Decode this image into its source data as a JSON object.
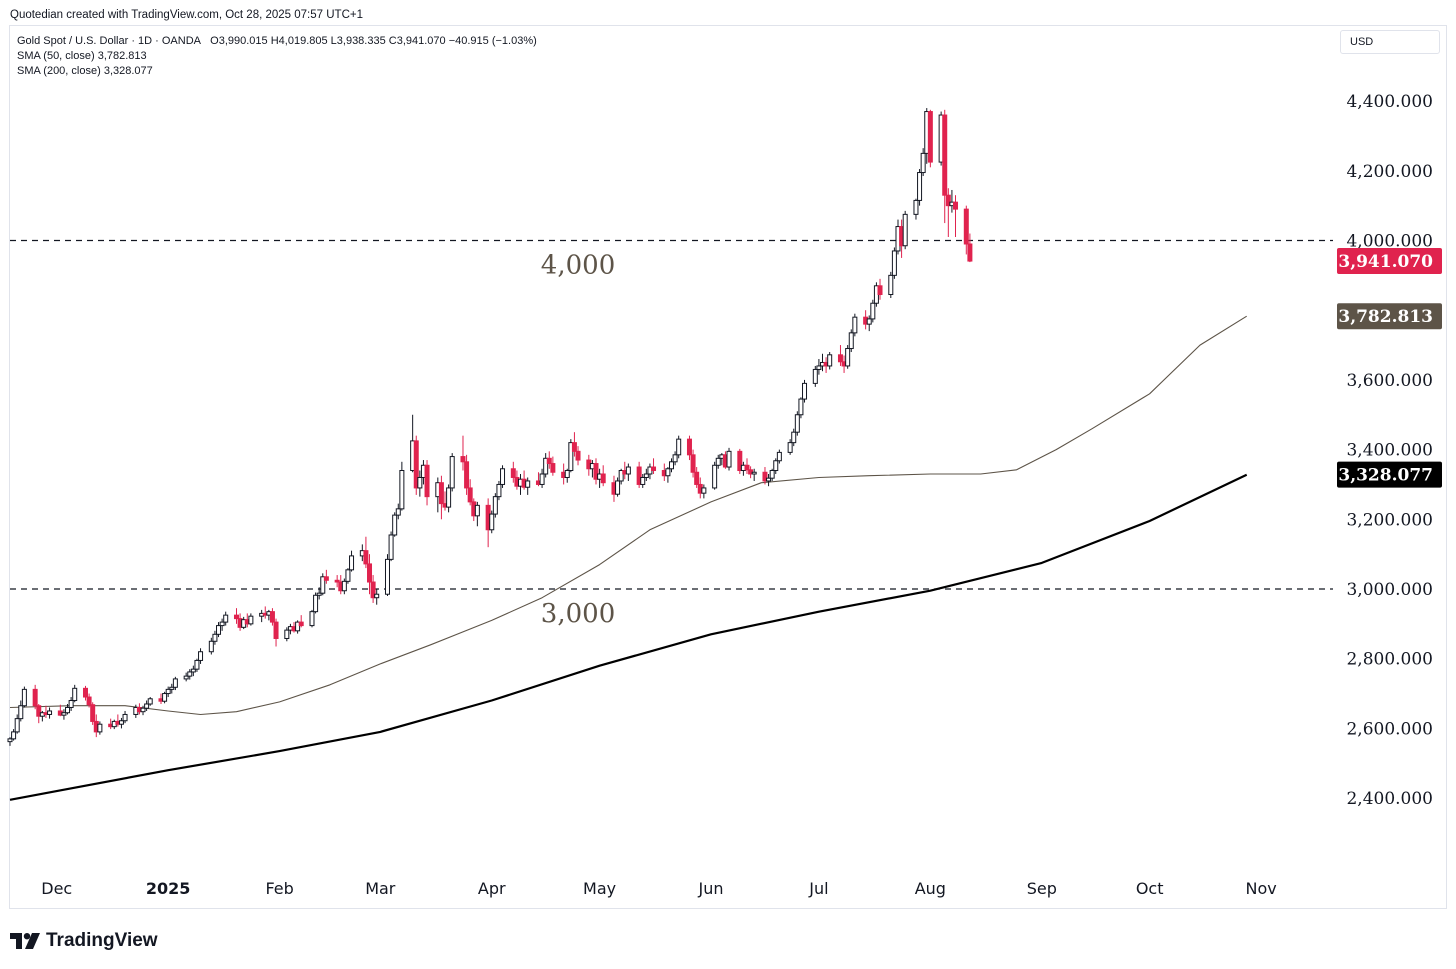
{
  "header": {
    "created_note": "Quotedian created with TradingView.com, Oct 28, 2025 07:57 UTC+1"
  },
  "legend": {
    "instrument": "Gold Spot / U.S. Dollar · 1D · OANDA",
    "ohlc": "O3,990.015  H4,019.805  L3,938.335  C3,941.070  −40.915 (−1.03%)",
    "sma50_label": "SMA (50, close)",
    "sma50_value": "3,782.813",
    "sma200_label": "SMA (200, close)",
    "sma200_value": "3,328.077"
  },
  "currency_label": "USD",
  "brand": {
    "name": "TradingView",
    "logo_icon": "tradingview-logo-icon"
  },
  "colors": {
    "up": "#131722",
    "down": "#e0234e",
    "sma50": "#5d5448",
    "sma200": "#000000",
    "price_tag": "#e0234e",
    "sma50_tag": "#5d5448",
    "sma200_tag": "#000000",
    "level_text": "#5d5448"
  },
  "chart_data": {
    "type": "candlestick",
    "instrument": "Gold Spot / U.S. Dollar",
    "timeframe": "1D",
    "ylim": [
      2250,
      4500
    ],
    "y_ticks": [
      {
        "value": 4400,
        "label": "4,400.000"
      },
      {
        "value": 4200,
        "label": "4,200.000"
      },
      {
        "value": 4000,
        "label": "4,000.000"
      },
      {
        "value": 3600,
        "label": "3,600.000"
      },
      {
        "value": 3400,
        "label": "3,400.000"
      },
      {
        "value": 3200,
        "label": "3,200.000"
      },
      {
        "value": 3000,
        "label": "3,000.000"
      },
      {
        "value": 2800,
        "label": "2,800.000"
      },
      {
        "value": 2600,
        "label": "2,600.000"
      },
      {
        "value": 2400,
        "label": "2,400.000"
      }
    ],
    "x_ticks": [
      {
        "date": "2024-12-01",
        "label": "Dec"
      },
      {
        "date": "2025-01-01",
        "label": "2025"
      },
      {
        "date": "2025-02-01",
        "label": "Feb"
      },
      {
        "date": "2025-03-01",
        "label": "Mar"
      },
      {
        "date": "2025-04-01",
        "label": "Apr"
      },
      {
        "date": "2025-05-01",
        "label": "May"
      },
      {
        "date": "2025-06-01",
        "label": "Jun"
      },
      {
        "date": "2025-07-01",
        "label": "Jul"
      },
      {
        "date": "2025-08-01",
        "label": "Aug"
      },
      {
        "date": "2025-09-01",
        "label": "Sep"
      },
      {
        "date": "2025-10-01",
        "label": "Oct"
      },
      {
        "date": "2025-11-01",
        "label": "Nov"
      }
    ],
    "x_range": [
      "2024-11-18",
      "2025-11-21"
    ],
    "levels": [
      {
        "value": 4000,
        "label": "4,000",
        "label_date": "2025-04-25",
        "label_offset": "below"
      },
      {
        "value": 3000,
        "label": "3,000",
        "label_date": "2025-04-25",
        "label_offset": "below"
      }
    ],
    "price_tags": [
      {
        "value": 3941.07,
        "label": "3,941.070",
        "role": "last_price"
      },
      {
        "value": 3782.813,
        "label": "3,782.813",
        "role": "sma50"
      },
      {
        "value": 3328.077,
        "label": "3,328.077",
        "role": "sma200"
      }
    ],
    "candles_anchor_date": "2024-11-18",
    "candles": [
      [
        2562,
        2575,
        2550,
        2570
      ],
      [
        2570,
        2598,
        2565,
        2590
      ],
      [
        2590,
        2640,
        2585,
        2628
      ],
      [
        2628,
        2680,
        2620,
        2665
      ],
      [
        2665,
        2720,
        2660,
        2712
      ],
      [
        2712,
        2725,
        2655,
        2665
      ],
      [
        2665,
        2670,
        2615,
        2635
      ],
      [
        2635,
        2650,
        2620,
        2645
      ],
      [
        2645,
        2665,
        2630,
        2640
      ],
      [
        2640,
        2660,
        2628,
        2650
      ],
      [
        2650,
        2668,
        2635,
        2638
      ],
      [
        2638,
        2655,
        2625,
        2645
      ],
      [
        2645,
        2670,
        2640,
        2660
      ],
      [
        2660,
        2690,
        2650,
        2680
      ],
      [
        2680,
        2725,
        2675,
        2715
      ],
      [
        2715,
        2722,
        2680,
        2690
      ],
      [
        2690,
        2700,
        2660,
        2668
      ],
      [
        2668,
        2675,
        2610,
        2620
      ],
      [
        2620,
        2640,
        2575,
        2590
      ],
      [
        2590,
        2620,
        2582,
        2612
      ],
      [
        2612,
        2628,
        2598,
        2605
      ],
      [
        2605,
        2625,
        2598,
        2620
      ],
      [
        2620,
        2640,
        2605,
        2612
      ],
      [
        2612,
        2630,
        2600,
        2622
      ],
      [
        2622,
        2650,
        2615,
        2640
      ],
      [
        2640,
        2668,
        2630,
        2660
      ],
      [
        2660,
        2672,
        2640,
        2648
      ],
      [
        2648,
        2665,
        2638,
        2658
      ],
      [
        2658,
        2680,
        2650,
        2670
      ],
      [
        2670,
        2690,
        2665,
        2685
      ],
      [
        2685,
        2700,
        2670,
        2678
      ],
      [
        2678,
        2705,
        2672,
        2700
      ],
      [
        2700,
        2720,
        2690,
        2712
      ],
      [
        2712,
        2728,
        2700,
        2718
      ],
      [
        2718,
        2748,
        2710,
        2742
      ],
      [
        2742,
        2760,
        2735,
        2750
      ],
      [
        2750,
        2770,
        2740,
        2762
      ],
      [
        2762,
        2780,
        2750,
        2770
      ],
      [
        2770,
        2800,
        2762,
        2795
      ],
      [
        2795,
        2830,
        2785,
        2820
      ],
      [
        2820,
        2860,
        2812,
        2850
      ],
      [
        2850,
        2880,
        2840,
        2870
      ],
      [
        2870,
        2905,
        2862,
        2895
      ],
      [
        2895,
        2915,
        2880,
        2905
      ],
      [
        2905,
        2935,
        2895,
        2925
      ],
      [
        2925,
        2945,
        2900,
        2915
      ],
      [
        2915,
        2930,
        2880,
        2890
      ],
      [
        2890,
        2920,
        2885,
        2912
      ],
      [
        2912,
        2930,
        2890,
        2900
      ],
      [
        2900,
        2930,
        2895,
        2922
      ],
      [
        2922,
        2940,
        2905,
        2930
      ],
      [
        2930,
        2950,
        2915,
        2925
      ],
      [
        2925,
        2940,
        2910,
        2935
      ],
      [
        2935,
        2945,
        2895,
        2905
      ],
      [
        2905,
        2915,
        2835,
        2858
      ],
      [
        2858,
        2890,
        2850,
        2882
      ],
      [
        2882,
        2900,
        2870,
        2892
      ],
      [
        2892,
        2905,
        2875,
        2880
      ],
      [
        2880,
        2910,
        2872,
        2905
      ],
      [
        2905,
        2925,
        2890,
        2895
      ],
      [
        2895,
        2940,
        2890,
        2935
      ],
      [
        2935,
        2990,
        2930,
        2982
      ],
      [
        2982,
        3005,
        2970,
        2988
      ],
      [
        2988,
        3045,
        2982,
        3035
      ],
      [
        3035,
        3055,
        3015,
        3025
      ],
      [
        3025,
        3040,
        3005,
        3020
      ],
      [
        3020,
        3040,
        2985,
        2995
      ],
      [
        2995,
        3030,
        2985,
        3022
      ],
      [
        3022,
        3060,
        3015,
        3055
      ],
      [
        3055,
        3110,
        3050,
        3095
      ],
      [
        3095,
        3128,
        3080,
        3110
      ],
      [
        3110,
        3150,
        3060,
        3072
      ],
      [
        3072,
        3100,
        2985,
        3020
      ],
      [
        3020,
        3040,
        2960,
        2975
      ],
      [
        2975,
        3000,
        2955,
        2985
      ],
      [
        2985,
        3100,
        2980,
        3085
      ],
      [
        3085,
        3165,
        3080,
        3155
      ],
      [
        3155,
        3220,
        3150,
        3212
      ],
      [
        3212,
        3245,
        3200,
        3230
      ],
      [
        3230,
        3365,
        3225,
        3340
      ],
      [
        3340,
        3500,
        3335,
        3425
      ],
      [
        3425,
        3440,
        3270,
        3290
      ],
      [
        3290,
        3340,
        3265,
        3320
      ],
      [
        3320,
        3370,
        3300,
        3355
      ],
      [
        3355,
        3370,
        3240,
        3265
      ],
      [
        3265,
        3320,
        3220,
        3305
      ],
      [
        3305,
        3325,
        3200,
        3245
      ],
      [
        3245,
        3280,
        3225,
        3235
      ],
      [
        3235,
        3300,
        3220,
        3290
      ],
      [
        3290,
        3390,
        3280,
        3380
      ],
      [
        3380,
        3440,
        3340,
        3365
      ],
      [
        3365,
        3385,
        3270,
        3290
      ],
      [
        3290,
        3315,
        3240,
        3250
      ],
      [
        3250,
        3260,
        3195,
        3210
      ],
      [
        3210,
        3250,
        3180,
        3240
      ],
      [
        3240,
        3260,
        3120,
        3170
      ],
      [
        3170,
        3225,
        3160,
        3215
      ],
      [
        3215,
        3275,
        3205,
        3265
      ],
      [
        3265,
        3310,
        3255,
        3300
      ],
      [
        3300,
        3355,
        3290,
        3345
      ],
      [
        3345,
        3365,
        3305,
        3320
      ],
      [
        3320,
        3340,
        3285,
        3295
      ],
      [
        3295,
        3330,
        3270,
        3315
      ],
      [
        3315,
        3340,
        3285,
        3292
      ],
      [
        3292,
        3320,
        3270,
        3310
      ],
      [
        3310,
        3335,
        3295,
        3300
      ],
      [
        3300,
        3345,
        3290,
        3330
      ],
      [
        3330,
        3390,
        3320,
        3375
      ],
      [
        3375,
        3395,
        3345,
        3360
      ],
      [
        3360,
        3380,
        3325,
        3335
      ],
      [
        3335,
        3360,
        3300,
        3320
      ],
      [
        3320,
        3345,
        3305,
        3340
      ],
      [
        3340,
        3430,
        3335,
        3420
      ],
      [
        3420,
        3450,
        3380,
        3395
      ],
      [
        3395,
        3410,
        3355,
        3370
      ],
      [
        3370,
        3385,
        3325,
        3345
      ],
      [
        3345,
        3370,
        3320,
        3360
      ],
      [
        3360,
        3375,
        3300,
        3315
      ],
      [
        3315,
        3345,
        3290,
        3330
      ],
      [
        3330,
        3355,
        3295,
        3305
      ],
      [
        3305,
        3325,
        3250,
        3272
      ],
      [
        3272,
        3320,
        3265,
        3310
      ],
      [
        3310,
        3345,
        3300,
        3340
      ],
      [
        3340,
        3365,
        3315,
        3330
      ],
      [
        3330,
        3360,
        3310,
        3350
      ],
      [
        3350,
        3365,
        3290,
        3300
      ],
      [
        3300,
        3330,
        3290,
        3320
      ],
      [
        3320,
        3345,
        3310,
        3330
      ],
      [
        3330,
        3360,
        3315,
        3350
      ],
      [
        3350,
        3375,
        3330,
        3340
      ],
      [
        3340,
        3360,
        3310,
        3325
      ],
      [
        3325,
        3350,
        3305,
        3345
      ],
      [
        3345,
        3375,
        3335,
        3365
      ],
      [
        3365,
        3395,
        3355,
        3385
      ],
      [
        3385,
        3440,
        3375,
        3430
      ],
      [
        3430,
        3440,
        3370,
        3385
      ],
      [
        3385,
        3400,
        3320,
        3335
      ],
      [
        3335,
        3350,
        3290,
        3300
      ],
      [
        3300,
        3320,
        3260,
        3275
      ],
      [
        3275,
        3300,
        3260,
        3290
      ],
      [
        3290,
        3365,
        3285,
        3355
      ],
      [
        3355,
        3385,
        3345,
        3375
      ],
      [
        3375,
        3390,
        3355,
        3385
      ],
      [
        3385,
        3395,
        3345,
        3350
      ],
      [
        3350,
        3405,
        3340,
        3395
      ],
      [
        3395,
        3402,
        3330,
        3340
      ],
      [
        3340,
        3365,
        3325,
        3355
      ],
      [
        3355,
        3375,
        3330,
        3342
      ],
      [
        3342,
        3352,
        3318,
        3330
      ],
      [
        3330,
        3345,
        3310,
        3335
      ],
      [
        3335,
        3350,
        3300,
        3310
      ],
      [
        3310,
        3330,
        3295,
        3318
      ],
      [
        3318,
        3345,
        3310,
        3340
      ],
      [
        3340,
        3375,
        3330,
        3368
      ],
      [
        3368,
        3400,
        3360,
        3392
      ],
      [
        3392,
        3430,
        3385,
        3420
      ],
      [
        3420,
        3460,
        3410,
        3450
      ],
      [
        3450,
        3510,
        3440,
        3500
      ],
      [
        3500,
        3550,
        3490,
        3545
      ],
      [
        3545,
        3600,
        3535,
        3590
      ],
      [
        3590,
        3640,
        3580,
        3630
      ],
      [
        3630,
        3660,
        3615,
        3640
      ],
      [
        3640,
        3675,
        3625,
        3650
      ],
      [
        3650,
        3665,
        3620,
        3640
      ],
      [
        3640,
        3680,
        3630,
        3672
      ],
      [
        3672,
        3700,
        3640,
        3652
      ],
      [
        3652,
        3670,
        3620,
        3640
      ],
      [
        3640,
        3700,
        3632,
        3690
      ],
      [
        3690,
        3745,
        3680,
        3735
      ],
      [
        3735,
        3790,
        3725,
        3780
      ],
      [
        3780,
        3800,
        3745,
        3760
      ],
      [
        3760,
        3785,
        3740,
        3775
      ],
      [
        3775,
        3830,
        3765,
        3820
      ],
      [
        3820,
        3880,
        3810,
        3870
      ],
      [
        3870,
        3890,
        3830,
        3845
      ],
      [
        3845,
        3910,
        3835,
        3900
      ],
      [
        3900,
        3980,
        3890,
        3970
      ],
      [
        3970,
        4060,
        3960,
        4040
      ],
      [
        4040,
        4060,
        3950,
        3985
      ],
      [
        3985,
        4085,
        3975,
        4075
      ],
      [
        4075,
        4120,
        4060,
        4115
      ],
      [
        4115,
        4205,
        4100,
        4195
      ],
      [
        4195,
        4265,
        4185,
        4250
      ],
      [
        4250,
        4380,
        4220,
        4370
      ],
      [
        4370,
        4375,
        4210,
        4225
      ],
      [
        4225,
        4370,
        4215,
        4360
      ],
      [
        4360,
        4375,
        4050,
        4130
      ],
      [
        4130,
        4150,
        4010,
        4100
      ],
      [
        4100,
        4145,
        4080,
        4110
      ],
      [
        4110,
        4130,
        4010,
        4090
      ],
      [
        4090,
        4100,
        3960,
        3990
      ],
      [
        3990,
        4020,
        3938,
        3941
      ]
    ],
    "sma50_points": [
      [
        "2024-11-18",
        2660
      ],
      [
        "2024-12-05",
        2665
      ],
      [
        "2024-12-20",
        2665
      ],
      [
        "2025-01-01",
        2650
      ],
      [
        "2025-01-10",
        2640
      ],
      [
        "2025-01-20",
        2648
      ],
      [
        "2025-02-01",
        2676
      ],
      [
        "2025-02-15",
        2725
      ],
      [
        "2025-03-01",
        2785
      ],
      [
        "2025-03-15",
        2840
      ],
      [
        "2025-04-01",
        2910
      ],
      [
        "2025-04-15",
        2975
      ],
      [
        "2025-05-01",
        3070
      ],
      [
        "2025-05-15",
        3170
      ],
      [
        "2025-06-01",
        3250
      ],
      [
        "2025-06-15",
        3305
      ],
      [
        "2025-07-01",
        3320
      ],
      [
        "2025-07-15",
        3325
      ],
      [
        "2025-08-01",
        3330
      ],
      [
        "2025-08-15",
        3330
      ],
      [
        "2025-08-25",
        3342
      ],
      [
        "2025-09-05",
        3400
      ],
      [
        "2025-09-15",
        3460
      ],
      [
        "2025-10-01",
        3560
      ],
      [
        "2025-10-15",
        3700
      ],
      [
        "2025-10-28",
        3782.813
      ]
    ],
    "sma200_points": [
      [
        "2024-11-18",
        2395
      ],
      [
        "2024-12-01",
        2420
      ],
      [
        "2025-01-01",
        2480
      ],
      [
        "2025-02-01",
        2535
      ],
      [
        "2025-03-01",
        2590
      ],
      [
        "2025-04-01",
        2680
      ],
      [
        "2025-05-01",
        2780
      ],
      [
        "2025-06-01",
        2870
      ],
      [
        "2025-07-01",
        2935
      ],
      [
        "2025-08-01",
        2995
      ],
      [
        "2025-09-01",
        3075
      ],
      [
        "2025-10-01",
        3195
      ],
      [
        "2025-10-28",
        3328.077
      ]
    ]
  }
}
